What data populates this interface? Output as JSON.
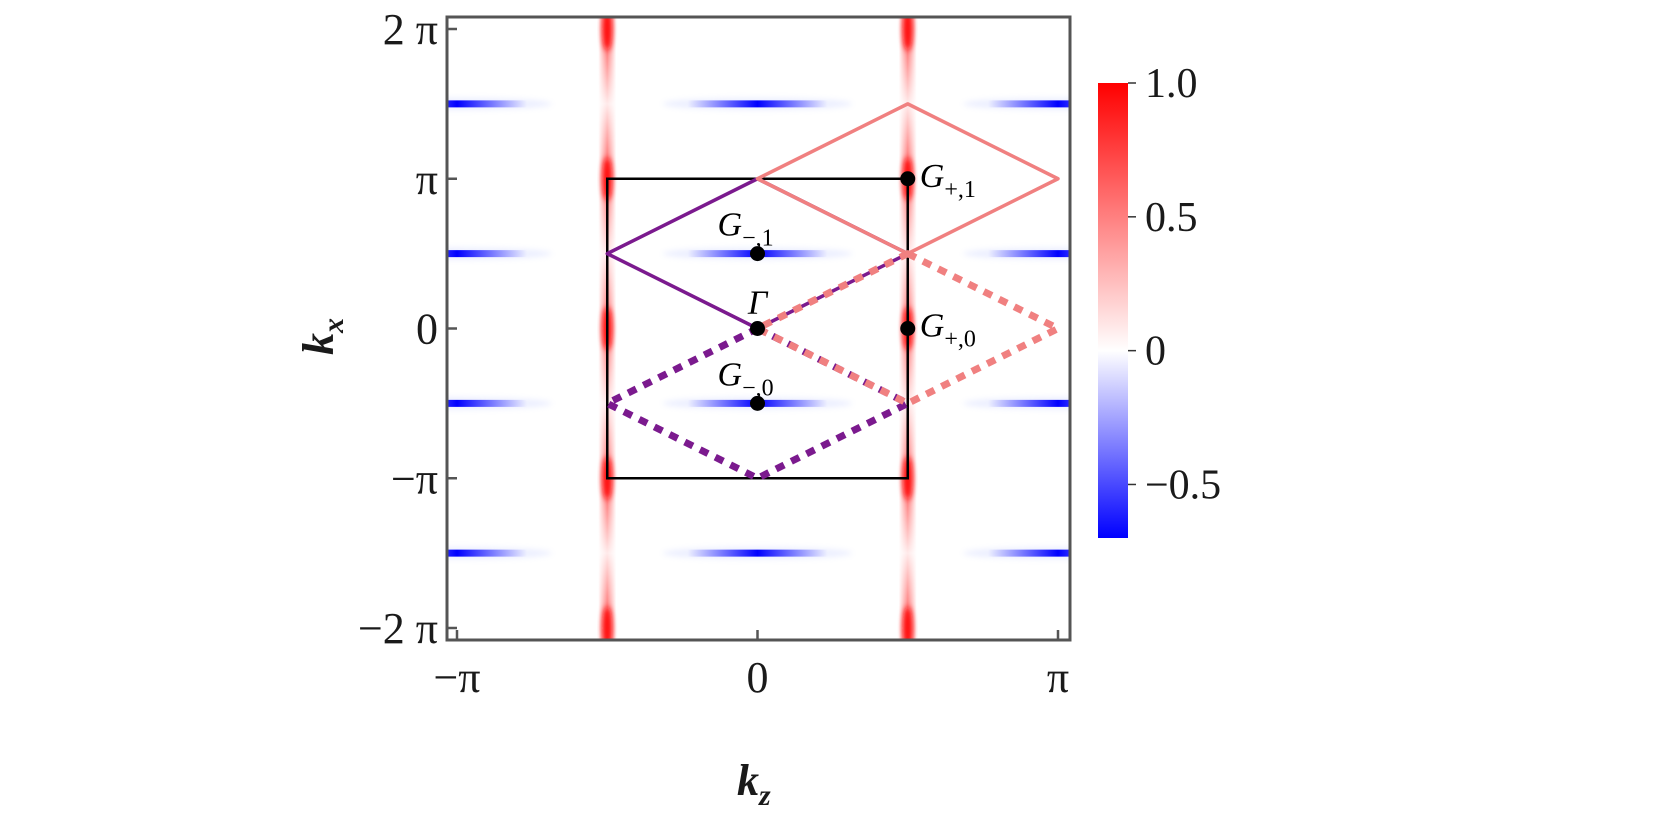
{
  "chart_data": {
    "type": "heatmap",
    "title": "",
    "xlabel": "k",
    "xlabel_sub": "z",
    "ylabel": "k",
    "ylabel_sub": "x",
    "xlim_over_pi": [
      -1,
      1
    ],
    "ylim_over_pi": [
      -2,
      2
    ],
    "x_ticks": [
      {
        "value_over_pi": -1,
        "label": "−π"
      },
      {
        "value_over_pi": 0,
        "label": "0"
      },
      {
        "value_over_pi": 1,
        "label": "π"
      }
    ],
    "y_ticks": [
      {
        "value_over_pi": 2,
        "label": "2 π"
      },
      {
        "value_over_pi": 1,
        "label": "π"
      },
      {
        "value_over_pi": 0,
        "label": "0"
      },
      {
        "value_over_pi": -1,
        "label": "−π"
      },
      {
        "value_over_pi": -2,
        "label": "−2 π"
      }
    ],
    "colormap": {
      "low": "#0000ff",
      "mid": "#ffffff",
      "high": "#ff0000"
    },
    "colorbar": {
      "range": [
        -0.7,
        1.0
      ],
      "ticks": [
        {
          "value": 1.0,
          "label": "1.0"
        },
        {
          "value": 0.5,
          "label": "0.5"
        },
        {
          "value": 0.0,
          "label": "0"
        },
        {
          "value": -0.5,
          "label": "−0.5"
        }
      ]
    },
    "red_stripes": [
      {
        "kz_over_pi": -0.5,
        "kx_over_pi_centers": [
          -2,
          -1,
          0,
          1,
          2
        ],
        "value": 1.0
      }
    ],
    "red_stripes_2": [
      {
        "kz_over_pi": 0.5,
        "kx_over_pi_centers": [
          -2,
          -1,
          0,
          1,
          2
        ],
        "value": 1.0
      }
    ],
    "blue_spots": [
      {
        "kz_over_pi": -1,
        "kx_over_pi": 1.5
      },
      {
        "kz_over_pi": 0,
        "kx_over_pi": 1.5
      },
      {
        "kz_over_pi": 1,
        "kx_over_pi": 1.5
      },
      {
        "kz_over_pi": -1,
        "kx_over_pi": 0.5
      },
      {
        "kz_over_pi": 0,
        "kx_over_pi": 0.5
      },
      {
        "kz_over_pi": 1,
        "kx_over_pi": 0.5
      },
      {
        "kz_over_pi": -1,
        "kx_over_pi": -0.5
      },
      {
        "kz_over_pi": 0,
        "kx_over_pi": -0.5
      },
      {
        "kz_over_pi": 1,
        "kx_over_pi": -0.5
      },
      {
        "kz_over_pi": -1,
        "kx_over_pi": -1.5
      },
      {
        "kz_over_pi": 0,
        "kx_over_pi": -1.5
      },
      {
        "kz_over_pi": 1,
        "kx_over_pi": -1.5
      }
    ],
    "blue_value": -0.7,
    "brillouin_rectangle": {
      "kz_over_pi": [
        -0.5,
        0.5
      ],
      "kx_over_pi": [
        -1,
        1
      ],
      "color": "#000000"
    },
    "rhombi": [
      {
        "name": "purple-solid",
        "color": "#7b1a8e",
        "style": "solid",
        "vertices_over_pi": [
          [
            0,
            1
          ],
          [
            0.5,
            0.5
          ],
          [
            0,
            0
          ],
          [
            -0.5,
            0.5
          ]
        ]
      },
      {
        "name": "purple-dotted",
        "color": "#7b1a8e",
        "style": "dotted",
        "vertices_over_pi": [
          [
            0,
            0
          ],
          [
            0.5,
            -0.5
          ],
          [
            0,
            -1
          ],
          [
            -0.5,
            -0.5
          ]
        ]
      },
      {
        "name": "pink-solid",
        "color": "#f08080",
        "style": "solid",
        "vertices_over_pi": [
          [
            0.5,
            1.5
          ],
          [
            1,
            1
          ],
          [
            0.5,
            0.5
          ],
          [
            0,
            1
          ]
        ]
      },
      {
        "name": "pink-dotted",
        "color": "#f08080",
        "style": "dotted",
        "vertices_over_pi": [
          [
            0.5,
            0.5
          ],
          [
            1,
            0
          ],
          [
            0.5,
            -0.5
          ],
          [
            0,
            0
          ]
        ]
      }
    ],
    "points": [
      {
        "id": "g-minus-1",
        "label": "G",
        "sub": "−,1",
        "kz_over_pi": 0,
        "kx_over_pi": 0.5,
        "label_pos": "above"
      },
      {
        "id": "gamma",
        "label": "Γ",
        "sub": "",
        "kz_over_pi": 0,
        "kx_over_pi": 0,
        "label_pos": "above"
      },
      {
        "id": "g-minus-0",
        "label": "G",
        "sub": "−,0",
        "kz_over_pi": 0,
        "kx_over_pi": -0.5,
        "label_pos": "above"
      },
      {
        "id": "g-plus-1",
        "label": "G",
        "sub": "+,1",
        "kz_over_pi": 0.5,
        "kx_over_pi": 1,
        "label_pos": "right"
      },
      {
        "id": "g-plus-0",
        "label": "G",
        "sub": "+,0",
        "kz_over_pi": 0.5,
        "kx_over_pi": 0,
        "label_pos": "right"
      }
    ]
  }
}
